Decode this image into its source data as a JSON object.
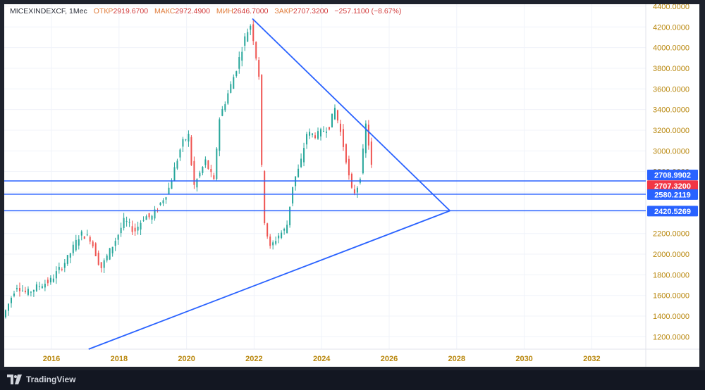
{
  "legend": {
    "symbol": "MICEXINDEXCF, 1Мес",
    "open_label": "ОТКР",
    "open": "2919.6700",
    "high_label": "МАКС",
    "high": "2972.4900",
    "low_label": "МИН",
    "low": "2646.7000",
    "close_label": "ЗАКР",
    "close": "2707.3200",
    "change": "−257.1100 (−8.67%)"
  },
  "brand": "TradingView",
  "colors": {
    "up": "#26a69a",
    "down": "#ef5350",
    "trendline": "#2962ff",
    "axis_text": "#b8860b",
    "badge_blue": "#2962ff",
    "badge_red": "#f23645"
  },
  "chart_data": {
    "type": "candlestick",
    "timeframe": "1Мес",
    "x_range": [
      2014.6,
      2033.6
    ],
    "y_range": [
      1080,
      4420
    ],
    "y_ticks": [
      "1200.0000",
      "1400.0000",
      "1600.0000",
      "1800.0000",
      "2000.0000",
      "2200.0000",
      "2400.0000",
      "2600.0000",
      "2800.0000",
      "3000.0000",
      "3200.0000",
      "3400.0000",
      "3600.0000",
      "3800.0000",
      "4000.0000",
      "4200.0000",
      "4400.0000"
    ],
    "y_tick_values": [
      1200,
      1400,
      1600,
      1800,
      2000,
      2200,
      2400,
      2600,
      2800,
      3000,
      3200,
      3400,
      3600,
      3800,
      4000,
      4200,
      4400
    ],
    "x_ticks": [
      "2016",
      "2018",
      "2020",
      "2022",
      "2024",
      "2026",
      "2028",
      "2030",
      "2032"
    ],
    "x_tick_values": [
      2016,
      2018,
      2020,
      2022,
      2024,
      2026,
      2028,
      2030,
      2032
    ],
    "anchors": [
      [
        2014.6,
        1390
      ],
      [
        2015.0,
        1700
      ],
      [
        2015.3,
        1620
      ],
      [
        2015.7,
        1700
      ],
      [
        2016.0,
        1740
      ],
      [
        2016.5,
        1950
      ],
      [
        2016.9,
        2200
      ],
      [
        2017.2,
        2150
      ],
      [
        2017.5,
        1860
      ],
      [
        2018.0,
        2180
      ],
      [
        2018.2,
        2330
      ],
      [
        2018.5,
        2220
      ],
      [
        2018.8,
        2370
      ],
      [
        2019.0,
        2350
      ],
      [
        2019.5,
        2620
      ],
      [
        2019.9,
        3070
      ],
      [
        2020.1,
        3150
      ],
      [
        2020.25,
        2650
      ],
      [
        2020.6,
        2900
      ],
      [
        2020.85,
        2700
      ],
      [
        2021.0,
        3300
      ],
      [
        2021.5,
        3780
      ],
      [
        2021.8,
        4130
      ],
      [
        2021.95,
        4230
      ],
      [
        2022.2,
        3700
      ],
      [
        2022.3,
        2400
      ],
      [
        2022.4,
        2250
      ],
      [
        2022.5,
        2050
      ],
      [
        2022.75,
        2180
      ],
      [
        2023.0,
        2250
      ],
      [
        2023.2,
        2700
      ],
      [
        2023.4,
        2850
      ],
      [
        2023.6,
        3170
      ],
      [
        2023.9,
        3150
      ],
      [
        2024.1,
        3200
      ],
      [
        2024.3,
        3250
      ],
      [
        2024.42,
        3430
      ],
      [
        2024.6,
        3180
      ],
      [
        2024.8,
        2870
      ],
      [
        2024.9,
        2620
      ],
      [
        2025.05,
        2600
      ],
      [
        2025.2,
        2780
      ],
      [
        2025.35,
        3250
      ],
      [
        2025.5,
        2920
      ],
      [
        2025.55,
        2707
      ]
    ],
    "horizontal_levels": [
      {
        "value": 2708.9902,
        "label": "2708.9902",
        "badge": "blue"
      },
      {
        "value": 2707.32,
        "label": "2707.3200",
        "badge": "red"
      },
      {
        "value": 2580.2119,
        "label": "2580.2119",
        "badge": "blue"
      },
      {
        "value": 2420.5269,
        "label": "2420.5269",
        "badge": "blue"
      }
    ],
    "trendlines": [
      {
        "x1": 2021.95,
        "y1": 4280,
        "x2": 2027.8,
        "y2": 2420
      },
      {
        "x1": 2017.1,
        "y1": 1080,
        "x2": 2027.8,
        "y2": 2420
      }
    ]
  }
}
